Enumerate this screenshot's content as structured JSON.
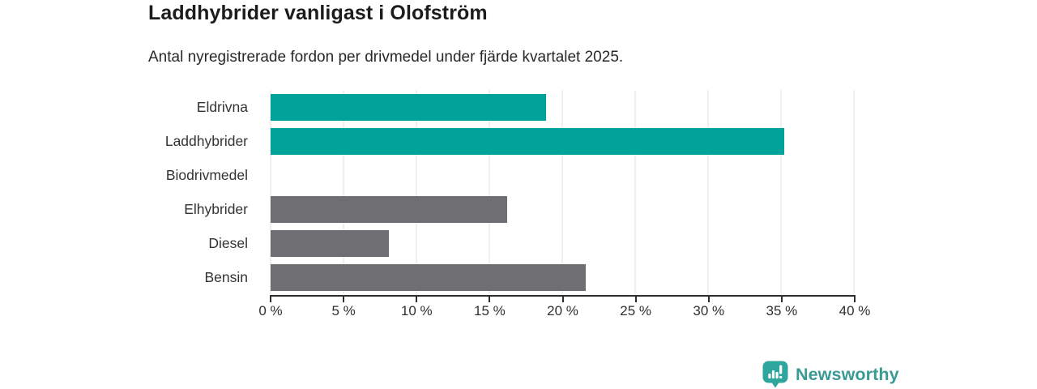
{
  "title": "Laddhybrider vanligast i Olofström",
  "subtitle": "Antal nyregistrerade fordon per drivmedel under fjärde kvartalet 2025.",
  "colors": {
    "teal": "#00a29a",
    "gray": "#6e6e73",
    "gridline": "#e1e1e1",
    "axis": "#2e2e2e",
    "brand": "#3a9a94"
  },
  "chart_data": {
    "type": "bar",
    "orientation": "horizontal",
    "title": "Laddhybrider vanligast i Olofström",
    "subtitle": "Antal nyregistrerade fordon per drivmedel under fjärde kvartalet 2025.",
    "xlabel": "",
    "ylabel": "",
    "categories": [
      "Eldrivna",
      "Laddhybrider",
      "Biodrivmedel",
      "Elhybrider",
      "Diesel",
      "Bensin"
    ],
    "values": [
      18.9,
      35.2,
      0,
      16.2,
      8.1,
      21.6
    ],
    "bar_colors": [
      "#00a29a",
      "#00a29a",
      "#6e6e73",
      "#6e6e73",
      "#6e6e73",
      "#6e6e73"
    ],
    "unit": "%",
    "xlim": [
      0,
      40
    ],
    "ticks": [
      0,
      5,
      10,
      15,
      20,
      25,
      30,
      35,
      40
    ],
    "tick_labels": [
      "0 %",
      "5 %",
      "10 %",
      "15 %",
      "20 %",
      "25 %",
      "30 %",
      "35 %",
      "40 %"
    ],
    "grid": true,
    "legend": false
  },
  "branding": {
    "name": "Newsworthy",
    "icon": "newsworthy-bar-chart-bubble-icon"
  }
}
